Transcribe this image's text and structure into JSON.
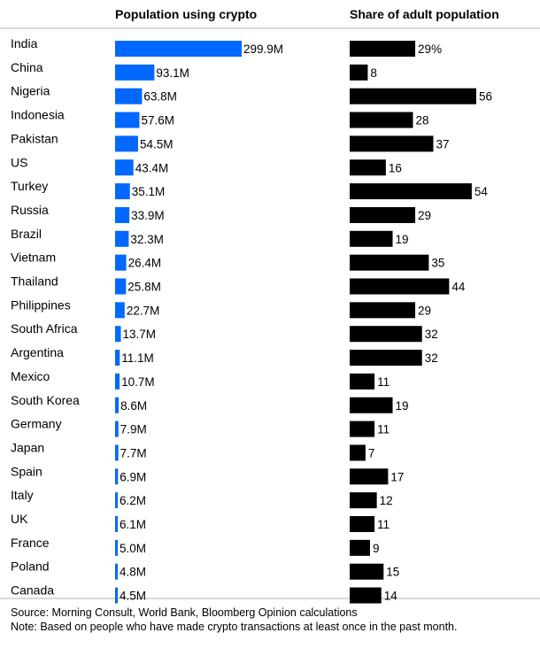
{
  "chart_data": {
    "type": "bar",
    "column_headers": [
      "Population using crypto",
      "Share of adult population"
    ],
    "categories": [
      "India",
      "China",
      "Nigeria",
      "Indonesia",
      "Pakistan",
      "US",
      "Turkey",
      "Russia",
      "Brazil",
      "Vietnam",
      "Thailand",
      "Philippines",
      "South Africa",
      "Argentina",
      "Mexico",
      "South Korea",
      "Germany",
      "Japan",
      "Spain",
      "Italy",
      "UK",
      "France",
      "Poland",
      "Canada"
    ],
    "series": [
      {
        "name": "Population using crypto",
        "unit": "M",
        "color": "#0068ff",
        "values": [
          299.9,
          93.1,
          63.8,
          57.6,
          54.5,
          43.4,
          35.1,
          33.9,
          32.3,
          26.4,
          25.8,
          22.7,
          13.7,
          11.1,
          10.7,
          8.6,
          7.9,
          7.7,
          6.9,
          6.2,
          6.1,
          5.0,
          4.8,
          4.5
        ],
        "labels": [
          "299.9M",
          "93.1M",
          "63.8M",
          "57.6M",
          "54.5M",
          "43.4M",
          "35.1M",
          "33.9M",
          "32.3M",
          "26.4M",
          "25.8M",
          "22.7M",
          "13.7M",
          "11.1M",
          "10.7M",
          "8.6M",
          "7.9M",
          "7.7M",
          "6.9M",
          "6.2M",
          "6.1M",
          "5.0M",
          "4.8M",
          "4.5M"
        ]
      },
      {
        "name": "Share of adult population",
        "unit": "%",
        "color": "#000000",
        "values": [
          29,
          8,
          56,
          28,
          37,
          16,
          54,
          29,
          19,
          35,
          44,
          29,
          32,
          32,
          11,
          19,
          11,
          7,
          17,
          12,
          11,
          9,
          15,
          14
        ],
        "labels": [
          "29%",
          "8",
          "56",
          "28",
          "37",
          "16",
          "54",
          "29",
          "19",
          "35",
          "44",
          "29",
          "32",
          "32",
          "11",
          "19",
          "11",
          "7",
          "17",
          "12",
          "11",
          "9",
          "15",
          "14"
        ]
      }
    ]
  },
  "footer": {
    "source": "Source: Morning Consult, World Bank, Bloomberg Opinion calculations",
    "note": "Note: Based on people who have made crypto transactions at least once in the past month."
  }
}
